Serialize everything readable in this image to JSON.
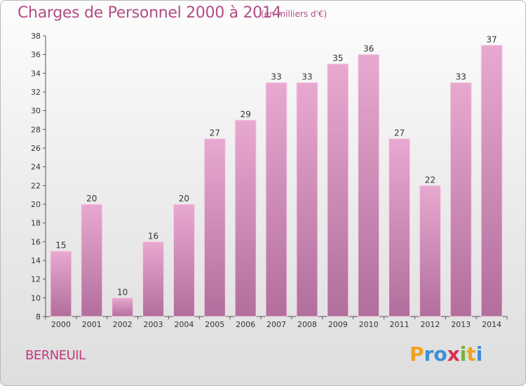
{
  "header": {
    "title": "Charges de Personnel 2000 à 2014",
    "subtitle": "(en milliers d'€)"
  },
  "footer": {
    "place": "BERNEUIL",
    "logo": [
      "P",
      "r",
      "o",
      "x",
      "i",
      "t",
      "i"
    ],
    "logo_colors": [
      "#f0a21f",
      "#3a8fd6",
      "#3a8fd6",
      "#d6304f",
      "#73b33b",
      "#f0a21f",
      "#3a8fd6"
    ]
  },
  "colors": {
    "bar_top": "#e8a9d0",
    "bar_bottom": "#b26e9c",
    "bar_edge": "#f6d5e9"
  },
  "chart_data": {
    "type": "bar",
    "categories": [
      "2000",
      "2001",
      "2002",
      "2003",
      "2004",
      "2005",
      "2006",
      "2007",
      "2008",
      "2009",
      "2010",
      "2011",
      "2012",
      "2013",
      "2014"
    ],
    "values": [
      15,
      20,
      10,
      16,
      20,
      27,
      29,
      33,
      33,
      35,
      36,
      27,
      22,
      33,
      37
    ],
    "title": "Charges de Personnel 2000 à 2014",
    "subtitle": "(en milliers d'€)",
    "ylim": [
      8,
      38
    ],
    "yticks": [
      8,
      10,
      12,
      14,
      16,
      18,
      20,
      22,
      24,
      26,
      28,
      30,
      32,
      34,
      36,
      38
    ],
    "grid": false,
    "data_labels": true
  }
}
